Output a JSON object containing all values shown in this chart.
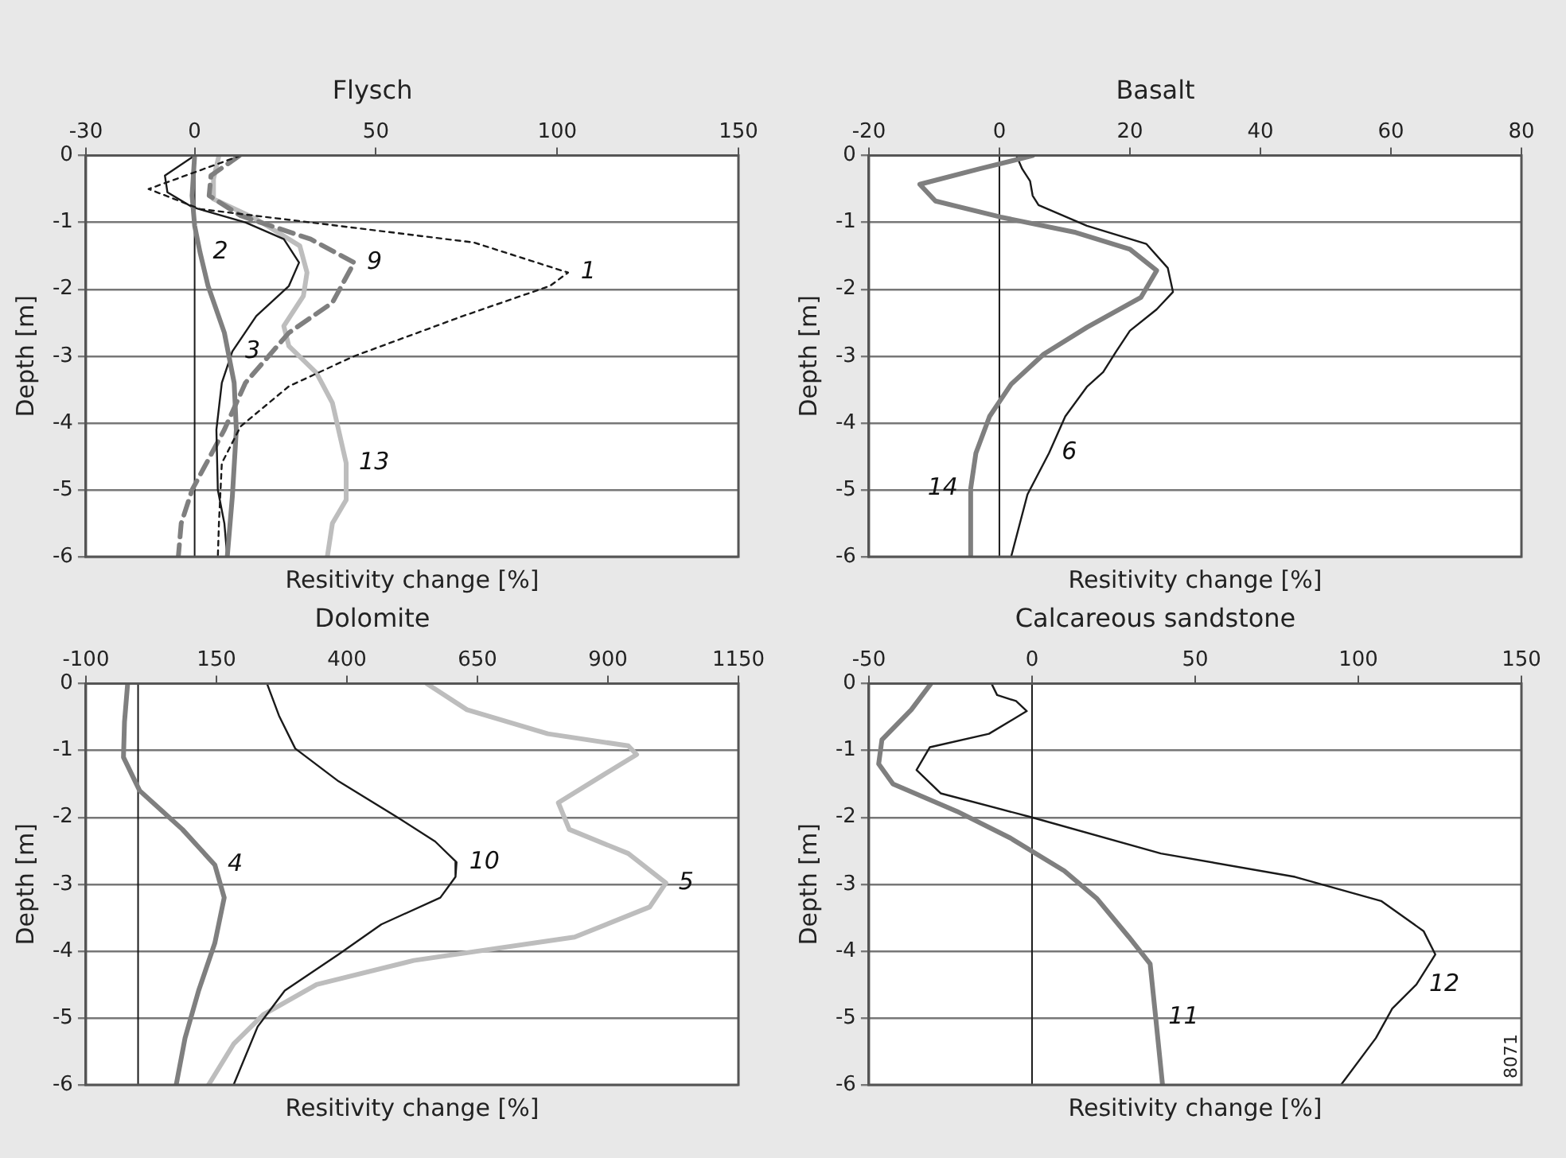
{
  "chart_data": [
    {
      "type": "line",
      "title": "Flysch",
      "xlabel": "Resitivity change [%]",
      "ylabel": "Depth [m]",
      "xlim": [
        -30,
        150
      ],
      "xticks": [
        -30,
        0,
        50,
        100,
        150
      ],
      "ylim": [
        -6,
        0
      ],
      "yticks": [
        0,
        -1,
        -2,
        -3,
        -4,
        -5,
        -6
      ],
      "grid": "y",
      "ref_lines": [
        {
          "axis": "x",
          "value": 0,
          "color": "#1a1a1a"
        }
      ],
      "series": [
        {
          "color": "#1a1a1a",
          "line_style": "dashed",
          "x": [
            12.7,
            -12.7,
            1.5,
            32,
            77,
            103,
            98,
            74,
            44,
            26,
            12.7,
            7.5,
            6.7,
            6.4
          ],
          "values": [
            0,
            -0.5,
            -0.8,
            -1,
            -1.3,
            -1.75,
            -1.95,
            -2.4,
            -3,
            -3.45,
            -4.05,
            -4.6,
            -5.5,
            -6
          ]
        },
        {
          "color": "#7f7f7f",
          "x": [
            0,
            -0.7,
            0,
            1.5,
            3.7,
            8.2,
            10.9,
            11.5,
            10.4,
            9
          ],
          "values": [
            0,
            -0.6,
            -1.05,
            -1.45,
            -1.95,
            -2.65,
            -3.4,
            -4.1,
            -5.1,
            -6
          ]
        },
        {
          "color": "#1a1a1a",
          "x": [
            0,
            -8.2,
            -7.5,
            -0.7,
            14,
            24.6,
            28.8,
            26,
            17,
            10.4,
            7.5,
            6,
            6.4,
            8.2,
            9
          ],
          "values": [
            0,
            -0.3,
            -0.55,
            -0.77,
            -1,
            -1.25,
            -1.6,
            -1.95,
            -2.4,
            -2.93,
            -3.4,
            -4.1,
            -5,
            -5.5,
            -6
          ]
        },
        {
          "color": "#7f7f7f",
          "line_style": "dashed",
          "x": [
            12.4,
            4.5,
            4,
            12.7,
            32,
            44,
            38,
            26,
            14,
            8.2,
            -0.7,
            -3.7,
            -4.5
          ],
          "values": [
            0,
            -0.3,
            -0.6,
            -0.9,
            -1.25,
            -1.6,
            -2.2,
            -2.65,
            -3.4,
            -4.1,
            -5,
            -5.5,
            -6
          ]
        },
        {
          "color": "#bdbdbd",
          "x": [
            6.7,
            5.2,
            5.2,
            17,
            29,
            31,
            30,
            24.6,
            26,
            33.6,
            38,
            41.8,
            41.8,
            38,
            36.6
          ],
          "values": [
            0,
            -0.35,
            -0.65,
            -0.95,
            -1.35,
            -1.75,
            -2.1,
            -2.55,
            -2.85,
            -3.25,
            -3.7,
            -4.6,
            -5.15,
            -5.5,
            -6
          ]
        }
      ],
      "annotations": [
        {
          "text": "1",
          "x": 103,
          "y": -1.75
        },
        {
          "text": "2",
          "x": 1.5,
          "y": -1.45
        },
        {
          "text": "3",
          "x": 10.4,
          "y": -2.93
        },
        {
          "text": "9",
          "x": 44,
          "y": -1.6
        },
        {
          "text": "13",
          "x": 41.8,
          "y": -4.6
        }
      ]
    },
    {
      "type": "line",
      "title": "Basalt",
      "xlabel": "Resitivity change [%]",
      "ylabel": "Depth [m]",
      "xlim": [
        -20,
        80
      ],
      "xticks": [
        -20,
        0,
        20,
        40,
        60,
        80
      ],
      "ylim": [
        -6,
        0
      ],
      "yticks": [
        0,
        -1,
        -2,
        -3,
        -4,
        -5,
        -6
      ],
      "grid": "y",
      "ref_lines": [
        {
          "axis": "x",
          "value": 0,
          "color": "#1a1a1a"
        }
      ],
      "series": [
        {
          "color": "#7f7f7f",
          "x": [
            5.1,
            -3.1,
            -12.2,
            -9.8,
            0.2,
            11.7,
            20,
            24.1,
            21.7,
            13.4,
            6.8,
            1.8,
            -1.5,
            -3.6,
            -4.4,
            -4.4
          ],
          "values": [
            0,
            -0.2,
            -0.43,
            -0.68,
            -0.92,
            -1.15,
            -1.4,
            -1.72,
            -2.12,
            -2.57,
            -2.97,
            -3.42,
            -3.9,
            -4.45,
            -4.98,
            -6
          ]
        },
        {
          "color": "#1a1a1a",
          "x": [
            2.6,
            3.5,
            4.7,
            5.1,
            6,
            13.4,
            22.5,
            25.8,
            26.6,
            24.1,
            20,
            17.9,
            15.9,
            13.4,
            10.1,
            7.6,
            4.3,
            1.8
          ],
          "values": [
            0,
            -0.2,
            -0.38,
            -0.6,
            -0.74,
            -1.05,
            -1.32,
            -1.68,
            -2.04,
            -2.3,
            -2.62,
            -2.93,
            -3.24,
            -3.46,
            -3.9,
            -4.45,
            -5.07,
            -6
          ]
        }
      ],
      "annotations": [
        {
          "text": "14",
          "x": -4.4,
          "y": -4.98
        },
        {
          "text": "6",
          "x": 7.6,
          "y": -4.45
        }
      ]
    },
    {
      "type": "line",
      "title": "Dolomite",
      "xlabel": "Resitivity change [%]",
      "ylabel": "Depth [m]",
      "xlim": [
        -100,
        1150
      ],
      "xticks": [
        -100,
        150,
        400,
        650,
        900,
        1150
      ],
      "ylim": [
        -6,
        0
      ],
      "yticks": [
        0,
        -1,
        -2,
        -3,
        -4,
        -5,
        -6
      ],
      "grid": "y",
      "ref_lines": [
        {
          "axis": "x",
          "value": 0,
          "color": "#1a1a1a"
        }
      ],
      "series": [
        {
          "color": "#7f7f7f",
          "x": [
            -20,
            -26,
            -28,
            3,
            85,
            147,
            165,
            147,
            116,
            90,
            73
          ],
          "values": [
            0,
            -0.57,
            -1.1,
            -1.6,
            -2.18,
            -2.71,
            -3.2,
            -3.88,
            -4.59,
            -5.3,
            -6
          ]
        },
        {
          "color": "#1a1a1a",
          "x": [
            247,
            270,
            301,
            384,
            497,
            569,
            610,
            608,
            579,
            466,
            384,
            281,
            229,
            183
          ],
          "values": [
            0,
            -0.48,
            -0.97,
            -1.46,
            -2,
            -2.36,
            -2.67,
            -2.89,
            -3.2,
            -3.6,
            -4.05,
            -4.59,
            -5.13,
            -6
          ]
        },
        {
          "color": "#bdbdbd",
          "x": [
            553,
            630,
            785,
            939,
            955,
            888,
            805,
            826,
            939,
            1011,
            980,
            836,
            528,
            342,
            240,
            183,
            135
          ],
          "values": [
            0,
            -0.39,
            -0.75,
            -0.93,
            -1.06,
            -1.38,
            -1.78,
            -2.18,
            -2.54,
            -2.98,
            -3.34,
            -3.79,
            -4.14,
            -4.5,
            -4.95,
            -5.39,
            -6
          ]
        }
      ],
      "annotations": [
        {
          "text": "4",
          "x": 147,
          "y": -2.71
        },
        {
          "text": "10",
          "x": 610,
          "y": -2.67
        },
        {
          "text": "5",
          "x": 1011,
          "y": -2.98
        }
      ]
    },
    {
      "type": "line",
      "title": "Calcareous sandstone",
      "xlabel": "Resitivity change [%]",
      "ylabel": "Depth [m]",
      "xlim": [
        -50,
        150
      ],
      "xticks": [
        -50,
        0,
        50,
        100,
        150
      ],
      "ylim": [
        -6,
        0
      ],
      "yticks": [
        0,
        -1,
        -2,
        -3,
        -4,
        -5,
        -6
      ],
      "grid": "y",
      "ref_lines": [
        {
          "axis": "x",
          "value": 0,
          "color": "#1a1a1a"
        }
      ],
      "series": [
        {
          "color": "#7f7f7f",
          "x": [
            -31,
            -37,
            -46,
            -47,
            -42.6,
            -23,
            -6.6,
            9.9,
            19.8,
            29.7,
            36.2,
            37.9,
            40
          ],
          "values": [
            0,
            -0.39,
            -0.84,
            -1.2,
            -1.5,
            -1.91,
            -2.31,
            -2.8,
            -3.21,
            -3.79,
            -4.19,
            -4.99,
            -6
          ]
        },
        {
          "color": "#1a1a1a",
          "x": [
            -12.4,
            -10.7,
            -4.9,
            -1.6,
            -13.2,
            -31.3,
            -35.4,
            -28,
            0,
            39.5,
            80.6,
            107,
            120,
            123.6,
            117.8,
            110.4,
            105.4,
            94.7
          ],
          "values": [
            0,
            -0.17,
            -0.26,
            -0.41,
            -0.75,
            -0.95,
            -1.29,
            -1.64,
            -2,
            -2.54,
            -2.89,
            -3.25,
            -3.7,
            -4.05,
            -4.5,
            -4.86,
            -5.3,
            -6
          ]
        }
      ],
      "annotations": [
        {
          "text": "11",
          "x": 37.9,
          "y": -4.99
        },
        {
          "text": "12",
          "x": 117.8,
          "y": -4.5
        },
        "8071"
      ]
    }
  ]
}
